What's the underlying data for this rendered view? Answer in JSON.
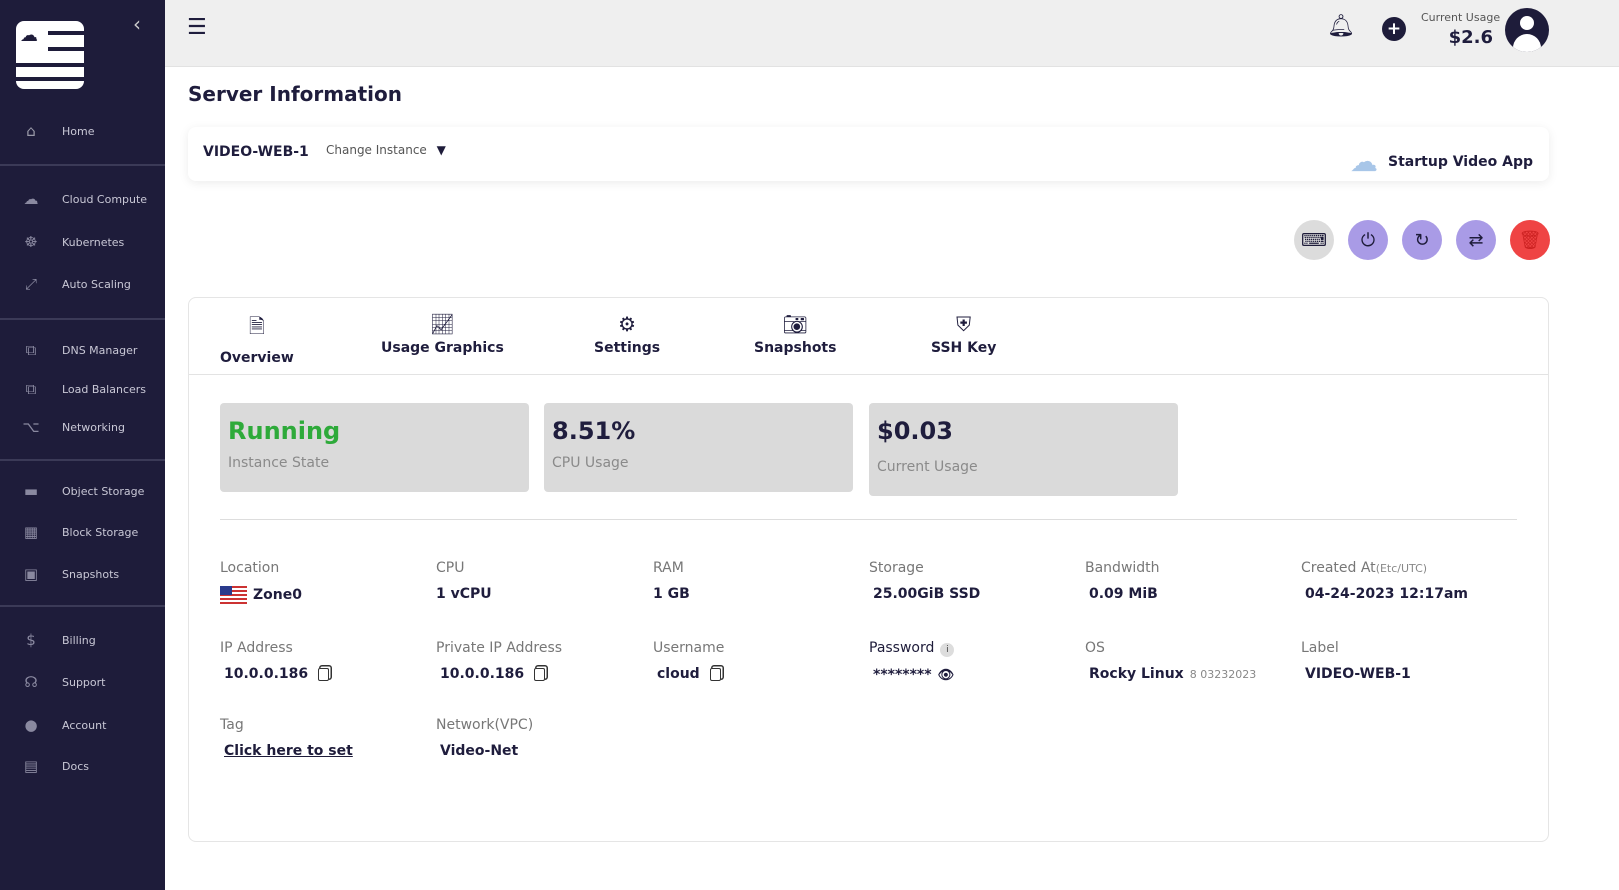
{
  "sidebar": {
    "items": [
      {
        "label": "Home",
        "icon": "home-icon"
      },
      {
        "label": "Cloud Compute",
        "icon": "cloud-icon"
      },
      {
        "label": "Kubernetes",
        "icon": "helm-icon"
      },
      {
        "label": "Auto Scaling",
        "icon": "scale-icon"
      },
      {
        "label": "DNS Manager",
        "icon": "dns-icon"
      },
      {
        "label": "Load Balancers",
        "icon": "load-balancer-icon"
      },
      {
        "label": "Networking",
        "icon": "network-icon"
      },
      {
        "label": "Object Storage",
        "icon": "storage-icon"
      },
      {
        "label": "Block Storage",
        "icon": "blocks-icon"
      },
      {
        "label": "Snapshots",
        "icon": "image-icon"
      },
      {
        "label": "Billing",
        "icon": "billing-icon"
      },
      {
        "label": "Support",
        "icon": "headset-icon"
      },
      {
        "label": "Account",
        "icon": "user-icon"
      },
      {
        "label": "Docs",
        "icon": "book-icon"
      }
    ]
  },
  "header": {
    "usage_label": "Current Usage",
    "usage_value": "$2.6"
  },
  "page": {
    "title": "Server Information"
  },
  "instance": {
    "name": "VIDEO-WEB-1",
    "change_label": "Change Instance",
    "project": "Startup Video App"
  },
  "tabs": [
    "Overview",
    "Usage Graphics",
    "Settings",
    "Snapshots",
    "SSH Key"
  ],
  "cards": [
    {
      "value": "Running",
      "label": "Instance State",
      "color": "#2eaa3a"
    },
    {
      "value": "8.51%",
      "label": "CPU Usage"
    },
    {
      "value": "$0.03",
      "label": "Current Usage"
    }
  ],
  "details": {
    "location": {
      "label": "Location",
      "value": "Zone0"
    },
    "cpu": {
      "label": "CPU",
      "value": "1 vCPU"
    },
    "ram": {
      "label": "RAM",
      "value": "1 GB"
    },
    "storage": {
      "label": "Storage",
      "value": "25.00GiB SSD"
    },
    "bandwidth": {
      "label": "Bandwidth",
      "value": "0.09 MiB"
    },
    "created": {
      "label": "Created At",
      "suffix": "(Etc/UTC)",
      "value": "04-24-2023 12:17am"
    },
    "ip": {
      "label": "IP Address",
      "value": "10.0.0.186"
    },
    "private_ip": {
      "label": "Private IP Address",
      "value": "10.0.0.186"
    },
    "username": {
      "label": "Username",
      "value": "cloud"
    },
    "password": {
      "label": "Password",
      "value": "********"
    },
    "os": {
      "label": "OS",
      "value": "Rocky Linux",
      "version": "8 03232023"
    },
    "label": {
      "label": "Label",
      "value": "VIDEO-WEB-1"
    },
    "tag": {
      "label": "Tag",
      "value": "Click here to set"
    },
    "network": {
      "label": "Network(VPC)",
      "value": "Video-Net"
    }
  }
}
